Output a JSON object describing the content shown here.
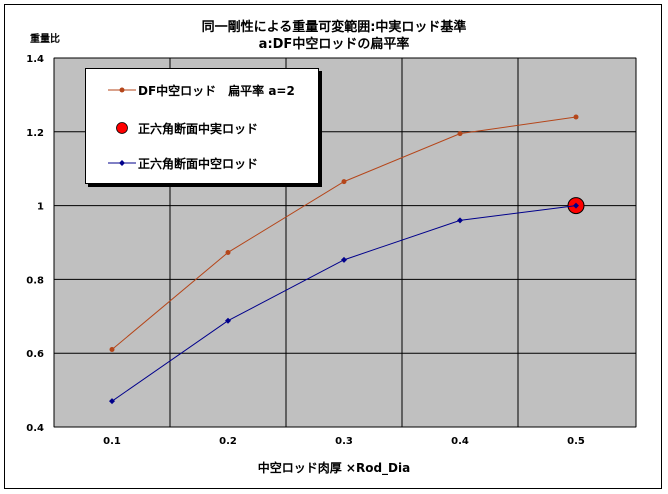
{
  "chart_data": {
    "type": "line",
    "title_line1": "同一剛性による重量可変範囲:中実ロッド基準",
    "title_line2": "a:DF中空ロッドの扁平率",
    "ylabel": "重量比",
    "xlabel": "中空ロッド肉厚 ×Rod_Dia",
    "categories": [
      "0.1",
      "0.2",
      "0.3",
      "0.4",
      "0.5"
    ],
    "ylim": [
      0.4,
      1.4
    ],
    "yticks": [
      "0.4",
      "0.6",
      "0.8",
      "1",
      "1.2",
      "1.4"
    ],
    "grid": true,
    "legend_position": "top-left",
    "series": [
      {
        "name": "DF中空ロッド　扁平率 a=2",
        "color": "#b5461a",
        "marker": "circle",
        "values": [
          0.61,
          0.873,
          1.065,
          1.195,
          1.24
        ]
      },
      {
        "name": "正六角断面中実ロッド",
        "color": "#ff0000",
        "marker": "big-circle",
        "values": [
          null,
          null,
          null,
          null,
          1.0
        ]
      },
      {
        "name": "正六角断面中空ロッド",
        "color": "#00008b",
        "marker": "diamond",
        "values": [
          0.47,
          0.688,
          0.853,
          0.96,
          1.0
        ]
      }
    ]
  }
}
